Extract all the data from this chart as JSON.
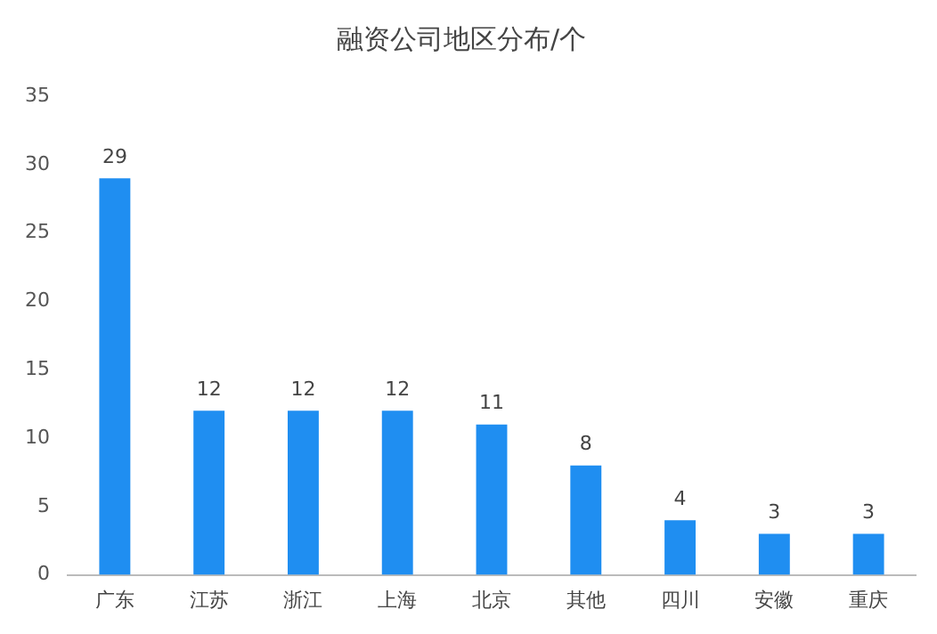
{
  "chart_data": {
    "type": "bar",
    "title": "融资公司地区分布/个",
    "categories": [
      "广东",
      "江苏",
      "浙江",
      "上海",
      "北京",
      "其他",
      "四川",
      "安徽",
      "重庆"
    ],
    "values": [
      29,
      12,
      12,
      12,
      11,
      8,
      4,
      3,
      3
    ],
    "color": "#1f8ef1",
    "ylim": [
      0,
      35
    ],
    "yticks": [
      0,
      5,
      10,
      15,
      20,
      25,
      30,
      35
    ],
    "grid": false,
    "data_labels": true
  }
}
